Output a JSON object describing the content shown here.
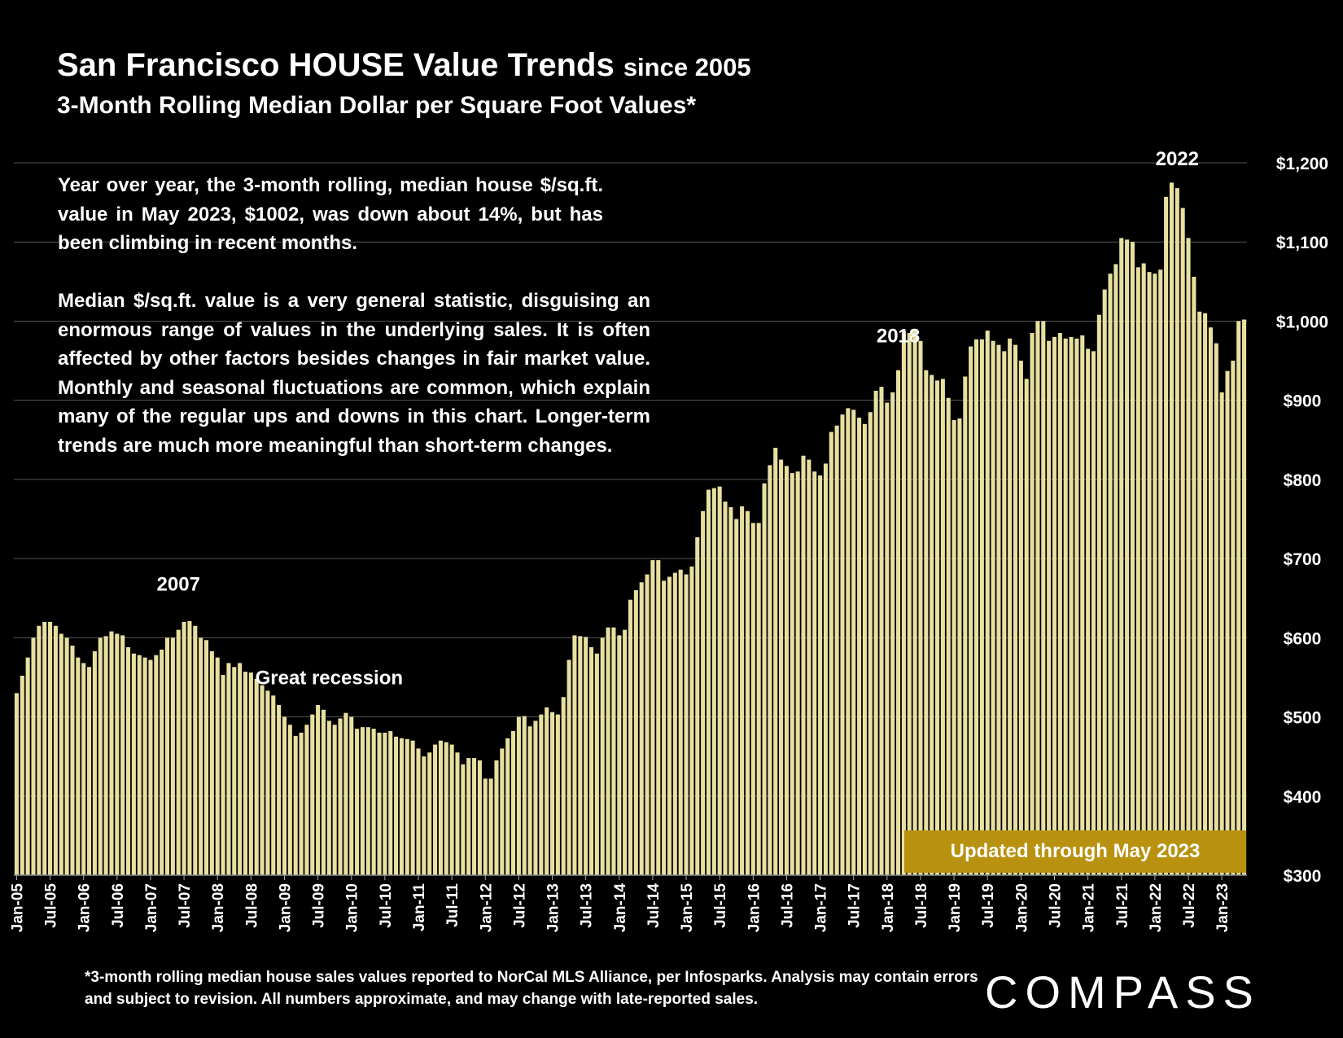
{
  "header": {
    "title": "San Francisco HOUSE Value Trends",
    "title_since": "since 2005",
    "subtitle": "3-Month Rolling Median Dollar per Square Foot Values*"
  },
  "commentary": {
    "paragraph1": "Year over year, the 3-month rolling, median house $/sq.ft. value in May 2023, $1002, was down about 14%, but has been climbing in recent months.",
    "paragraph2": "Median $/sq.ft. value is a very general statistic, disguising an enormous range of values in the underlying sales. It is often affected by other factors besides changes in fair market value. Monthly and seasonal fluctuations are common, which explain many of the regular ups and downs in this chart. Longer-term trends are much more meaningful than short-term changes."
  },
  "badge": "Updated through May 2023",
  "footnote": "*3-month rolling median house sales values reported to NorCal MLS Alliance, per Infosparks. Analysis may contain errors and subject to revision. All numbers approximate, and may change with late-reported sales.",
  "logo": "COMPASS",
  "colors": {
    "background": "#000000",
    "bar": "#e8e0a0",
    "badge": "#b8920f",
    "grid": "#555555",
    "text": "#ffffff"
  },
  "chart_data": {
    "type": "bar",
    "title": "San Francisco HOUSE Value Trends since 2005",
    "subtitle": "3-Month Rolling Median Dollar per Square Foot Values*",
    "xlabel": "",
    "ylabel": "",
    "ylim": [
      300,
      1200
    ],
    "y_axis_position": "right",
    "y_ticks": [
      1200,
      1100,
      1000,
      900,
      800,
      700,
      600,
      500,
      400,
      300
    ],
    "y_tick_labels": [
      "$1,200",
      "$1,100",
      "$1,000",
      "$900",
      "$800",
      "$700",
      "$600",
      "$500",
      "$400",
      "$300"
    ],
    "grid": true,
    "x_tick_labels": [
      "Jan-05",
      "Jul-05",
      "Jan-06",
      "Jul-06",
      "Jan-07",
      "Jul-07",
      "Jan-08",
      "Jul-08",
      "Jan-09",
      "Jul-09",
      "Jan-10",
      "Jul-10",
      "Jan-11",
      "Jul-11",
      "Jan-12",
      "Jul-12",
      "Jan-13",
      "Jul-13",
      "Jan-14",
      "Jul-14",
      "Jan-15",
      "Jul-15",
      "Jan-16",
      "Jul-16",
      "Jan-17",
      "Jul-17",
      "Jan-18",
      "Jul-18",
      "Jan-19",
      "Jul-19",
      "Jan-20",
      "Jul-20",
      "Jan-21",
      "Jul-21",
      "Jan-22",
      "Jul-22",
      "Jan-23"
    ],
    "start_month": "Jan-05",
    "end_month": "May-23",
    "annotations": [
      {
        "text": "2007",
        "month_index": 29
      },
      {
        "text": "Great recession",
        "month_index": 56
      },
      {
        "text": "2018",
        "month_index": 158
      },
      {
        "text": "2022",
        "month_index": 208
      }
    ],
    "values": [
      530,
      552,
      575,
      600,
      615,
      620,
      620,
      615,
      605,
      600,
      590,
      575,
      568,
      563,
      583,
      600,
      602,
      608,
      605,
      603,
      588,
      580,
      578,
      575,
      572,
      578,
      585,
      600,
      600,
      610,
      620,
      621,
      615,
      600,
      597,
      583,
      575,
      553,
      568,
      563,
      568,
      557,
      556,
      548,
      540,
      533,
      527,
      515,
      500,
      490,
      476,
      480,
      490,
      503,
      515,
      509,
      495,
      490,
      498,
      505,
      500,
      485,
      487,
      487,
      485,
      480,
      480,
      482,
      475,
      473,
      472,
      470,
      460,
      450,
      455,
      465,
      470,
      468,
      465,
      455,
      440,
      448,
      448,
      445,
      422,
      422,
      445,
      460,
      473,
      482,
      500,
      501,
      488,
      495,
      503,
      512,
      506,
      503,
      525,
      572,
      603,
      602,
      601,
      588,
      580,
      600,
      613,
      613,
      603,
      610,
      648,
      660,
      670,
      680,
      698,
      698,
      672,
      677,
      682,
      686,
      680,
      690,
      727,
      760,
      787,
      789,
      791,
      772,
      765,
      750,
      766,
      760,
      745,
      745,
      795,
      818,
      840,
      825,
      817,
      808,
      810,
      830,
      825,
      810,
      805,
      820,
      860,
      868,
      882,
      890,
      888,
      878,
      870,
      885,
      912,
      917,
      897,
      910,
      938,
      987,
      985,
      988,
      975,
      938,
      932,
      925,
      927,
      903,
      875,
      877,
      930,
      968,
      977,
      977,
      988,
      975,
      970,
      962,
      978,
      970,
      950,
      927,
      985,
      1000,
      1000,
      975,
      980,
      985,
      978,
      980,
      978,
      982,
      965,
      962,
      1008,
      1040,
      1060,
      1072,
      1105,
      1103,
      1100,
      1068,
      1073,
      1062,
      1060,
      1065,
      1157,
      1175,
      1168,
      1143,
      1105,
      1056,
      1012,
      1010,
      992,
      972,
      910,
      937,
      950,
      1000,
      1002
    ]
  }
}
